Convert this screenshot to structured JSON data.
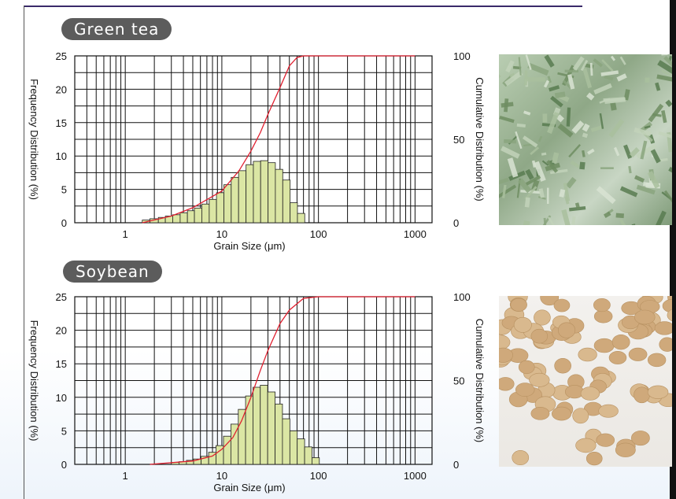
{
  "panels": [
    {
      "title": "Green tea",
      "photo_icon": "green-tea-leaves-photo"
    },
    {
      "title": "Soybean",
      "photo_icon": "soybeans-photo"
    }
  ],
  "colors": {
    "bar_fill": "#dbe6a4",
    "bar_stroke": "#222222",
    "curve": "#e02030",
    "pill_bg": "#5c5c5c"
  },
  "chart_data": [
    {
      "type": "bar",
      "title": "Green tea",
      "xlabel": "Grain Size (μm)",
      "ylabel": "Frequency Distribution (%)",
      "y2label": "Cumulative Distribution (%)",
      "xscale": "log",
      "xlim": [
        0.3,
        1500
      ],
      "xticks": [
        "1",
        "10",
        "100",
        "1000"
      ],
      "ylim": [
        0,
        25
      ],
      "yticks": [
        "0",
        "5",
        "10",
        "15",
        "20",
        "25"
      ],
      "y2lim": [
        0,
        100
      ],
      "y2ticks": [
        "0",
        "50",
        "100"
      ],
      "grid": true,
      "bins": [
        1.5,
        1.8,
        2.2,
        2.6,
        3.1,
        3.7,
        4.4,
        5.2,
        6.2,
        7.4,
        8.8,
        10.5,
        12.5,
        14.9,
        17.8,
        21.2,
        25.2,
        30.1,
        35.8,
        42.7,
        50.9,
        60.6
      ],
      "values": [
        0.4,
        0.6,
        0.8,
        1.0,
        1.2,
        1.5,
        1.8,
        2.2,
        2.8,
        3.5,
        4.5,
        5.7,
        6.8,
        7.8,
        8.7,
        9.2,
        9.3,
        9.0,
        8.0,
        6.4,
        3.0,
        1.4
      ],
      "cumulative": {
        "x": [
          1.5,
          3,
          5,
          10,
          15,
          20,
          25,
          30,
          40,
          50,
          60,
          70,
          100,
          1000
        ],
        "y": [
          0,
          4,
          9,
          19,
          31,
          43,
          54,
          65,
          81,
          94,
          99,
          100,
          100,
          100
        ]
      }
    },
    {
      "type": "bar",
      "title": "Soybean",
      "xlabel": "Grain Size (μm)",
      "ylabel": "Frequency Distribution (%)",
      "y2label": "Cumulative Distribution (%)",
      "xscale": "log",
      "xlim": [
        0.3,
        1500
      ],
      "xticks": [
        "1",
        "10",
        "100",
        "1000"
      ],
      "ylim": [
        0,
        25
      ],
      "yticks": [
        "0",
        "5",
        "10",
        "15",
        "20",
        "25"
      ],
      "y2lim": [
        0,
        100
      ],
      "y2ticks": [
        "0",
        "50",
        "100"
      ],
      "grid": true,
      "bins": [
        3.0,
        3.6,
        4.3,
        5.1,
        6.1,
        7.3,
        8.7,
        10.4,
        12.4,
        14.8,
        17.6,
        21.0,
        25.0,
        29.8,
        35.6,
        42.4,
        50.6,
        60.3,
        71.9,
        85.7
      ],
      "values": [
        0.3,
        0.4,
        0.6,
        0.8,
        1.2,
        1.8,
        2.8,
        4.2,
        6.0,
        8.2,
        10.2,
        11.5,
        11.8,
        10.8,
        9.0,
        6.8,
        5.0,
        3.8,
        2.6,
        1.0
      ],
      "cumulative": {
        "x": [
          1.8,
          5,
          8,
          10,
          13,
          16,
          20,
          25,
          30,
          40,
          50,
          70,
          100,
          1000
        ],
        "y": [
          0,
          2,
          5,
          9,
          16,
          26,
          40,
          56,
          68,
          84,
          92,
          99,
          100,
          100
        ]
      }
    }
  ]
}
